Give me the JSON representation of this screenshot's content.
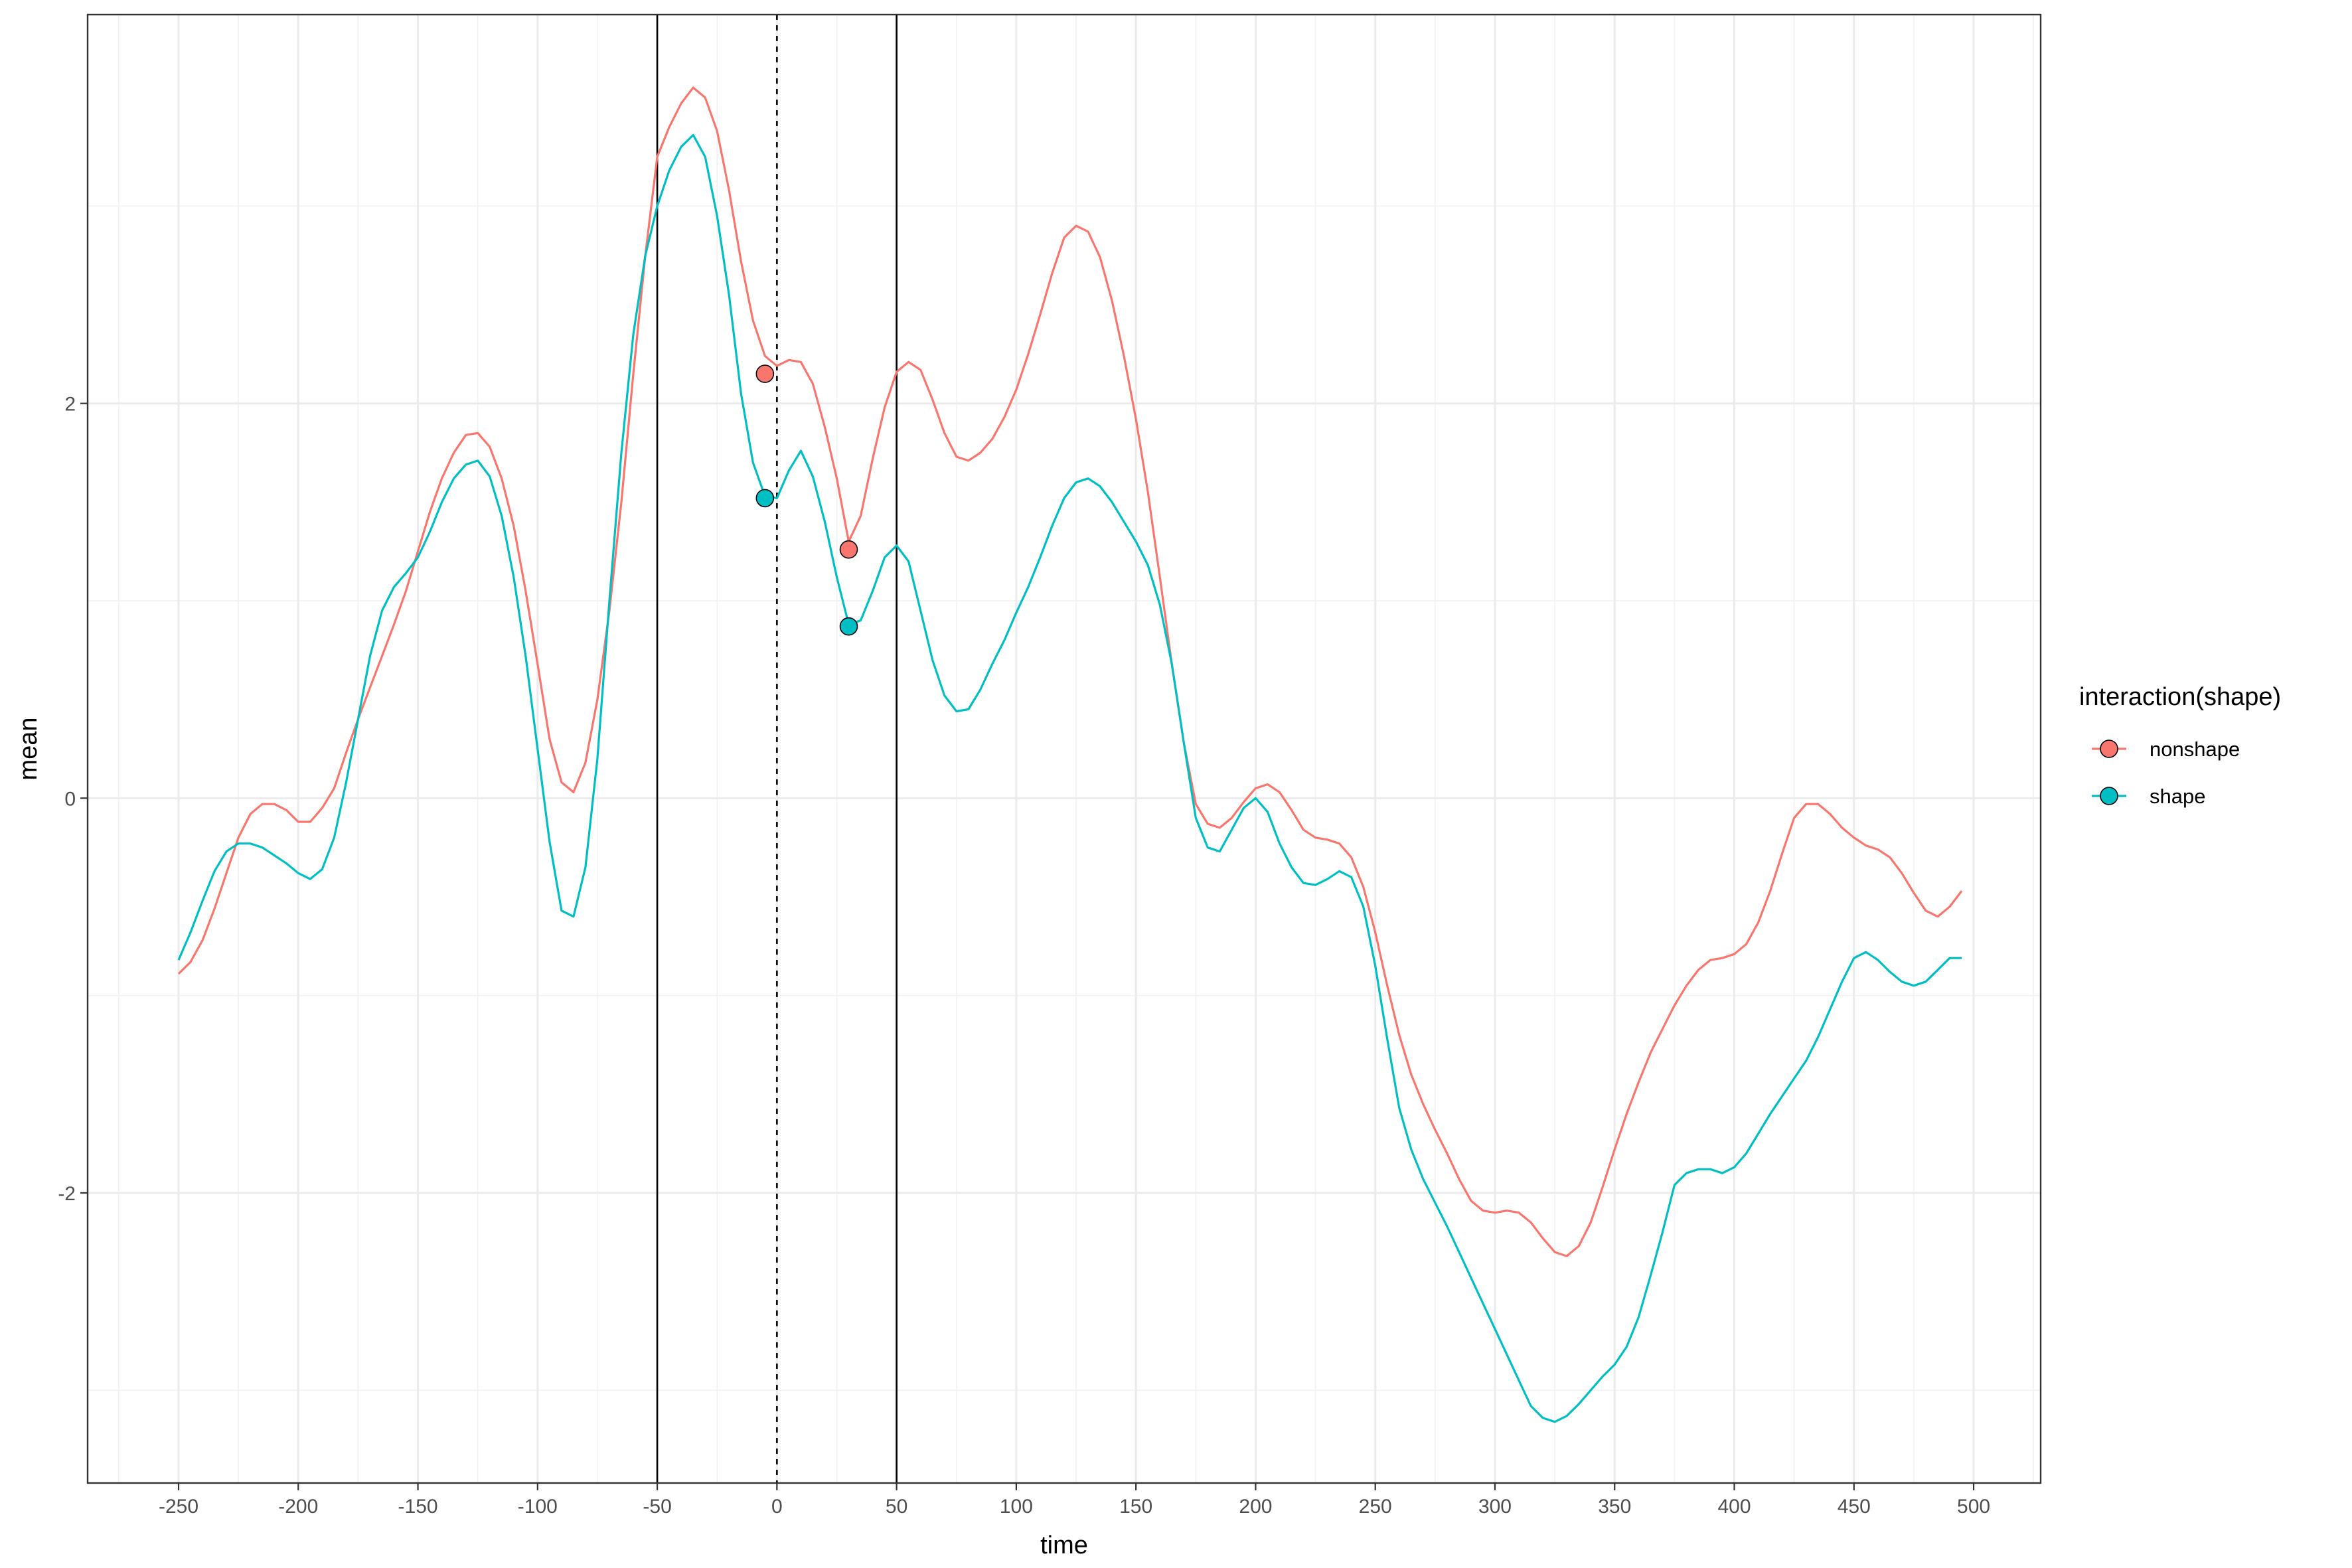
{
  "chart_data": {
    "type": "line",
    "xlabel": "time",
    "ylabel": "mean",
    "xlim": [
      -288,
      528
    ],
    "ylim": [
      -3.47,
      3.97
    ],
    "x_ticks": [
      -250,
      -200,
      -150,
      -100,
      -50,
      0,
      50,
      100,
      150,
      200,
      250,
      300,
      350,
      400,
      450,
      500
    ],
    "x_tick_labels": [
      "-250",
      "-200",
      "-150",
      "-100",
      "-50",
      "0",
      "50",
      "100",
      "150",
      "200",
      "250",
      "300",
      "350",
      "400",
      "450",
      "500"
    ],
    "x_minor_ticks": [
      -275,
      -225,
      -175,
      -125,
      -75,
      -25,
      25,
      75,
      125,
      175,
      225,
      275,
      325,
      375,
      425,
      475,
      525
    ],
    "y_ticks": [
      -2,
      0,
      2
    ],
    "y_tick_labels": [
      "-2",
      "0",
      "2"
    ],
    "y_minor_ticks": [
      -3,
      -1,
      1,
      3
    ],
    "grid": true,
    "legend_position": "right",
    "legend_title": "interaction(shape)",
    "vlines": [
      {
        "x": -50,
        "style": "solid"
      },
      {
        "x": 0,
        "style": "dashed"
      },
      {
        "x": 50,
        "style": "solid"
      }
    ],
    "series": [
      {
        "name": "nonshape",
        "color": "#F8766D",
        "points": [
          [
            -250,
            -0.89
          ],
          [
            -245,
            -0.83
          ],
          [
            -240,
            -0.72
          ],
          [
            -235,
            -0.56
          ],
          [
            -230,
            -0.38
          ],
          [
            -225,
            -0.2
          ],
          [
            -220,
            -0.08
          ],
          [
            -215,
            -0.03
          ],
          [
            -210,
            -0.03
          ],
          [
            -205,
            -0.06
          ],
          [
            -200,
            -0.12
          ],
          [
            -195,
            -0.12
          ],
          [
            -190,
            -0.05
          ],
          [
            -185,
            0.05
          ],
          [
            -180,
            0.23
          ],
          [
            -175,
            0.4
          ],
          [
            -170,
            0.56
          ],
          [
            -165,
            0.72
          ],
          [
            -160,
            0.88
          ],
          [
            -155,
            1.05
          ],
          [
            -150,
            1.25
          ],
          [
            -145,
            1.45
          ],
          [
            -140,
            1.62
          ],
          [
            -135,
            1.75
          ],
          [
            -130,
            1.84
          ],
          [
            -125,
            1.85
          ],
          [
            -120,
            1.78
          ],
          [
            -115,
            1.62
          ],
          [
            -110,
            1.38
          ],
          [
            -105,
            1.05
          ],
          [
            -100,
            0.68
          ],
          [
            -95,
            0.3
          ],
          [
            -90,
            0.08
          ],
          [
            -85,
            0.03
          ],
          [
            -80,
            0.18
          ],
          [
            -75,
            0.5
          ],
          [
            -70,
            0.95
          ],
          [
            -65,
            1.5
          ],
          [
            -60,
            2.15
          ],
          [
            -55,
            2.75
          ],
          [
            -50,
            3.25
          ],
          [
            -45,
            3.4
          ],
          [
            -40,
            3.52
          ],
          [
            -35,
            3.6
          ],
          [
            -30,
            3.55
          ],
          [
            -25,
            3.38
          ],
          [
            -20,
            3.08
          ],
          [
            -15,
            2.72
          ],
          [
            -10,
            2.42
          ],
          [
            -5,
            2.24
          ],
          [
            0,
            2.19
          ],
          [
            5,
            2.22
          ],
          [
            10,
            2.21
          ],
          [
            15,
            2.1
          ],
          [
            20,
            1.88
          ],
          [
            25,
            1.62
          ],
          [
            30,
            1.3
          ],
          [
            35,
            1.43
          ],
          [
            40,
            1.72
          ],
          [
            45,
            1.98
          ],
          [
            50,
            2.16
          ],
          [
            55,
            2.21
          ],
          [
            60,
            2.17
          ],
          [
            65,
            2.02
          ],
          [
            70,
            1.85
          ],
          [
            75,
            1.73
          ],
          [
            80,
            1.71
          ],
          [
            85,
            1.75
          ],
          [
            90,
            1.82
          ],
          [
            95,
            1.93
          ],
          [
            100,
            2.07
          ],
          [
            105,
            2.25
          ],
          [
            110,
            2.45
          ],
          [
            115,
            2.66
          ],
          [
            120,
            2.84
          ],
          [
            125,
            2.9
          ],
          [
            130,
            2.87
          ],
          [
            135,
            2.74
          ],
          [
            140,
            2.52
          ],
          [
            145,
            2.24
          ],
          [
            150,
            1.92
          ],
          [
            155,
            1.55
          ],
          [
            160,
            1.12
          ],
          [
            165,
            0.68
          ],
          [
            170,
            0.28
          ],
          [
            175,
            -0.03
          ],
          [
            180,
            -0.13
          ],
          [
            185,
            -0.15
          ],
          [
            190,
            -0.1
          ],
          [
            195,
            -0.02
          ],
          [
            200,
            0.05
          ],
          [
            205,
            0.07
          ],
          [
            210,
            0.03
          ],
          [
            215,
            -0.06
          ],
          [
            220,
            -0.16
          ],
          [
            225,
            -0.2
          ],
          [
            230,
            -0.21
          ],
          [
            235,
            -0.23
          ],
          [
            240,
            -0.3
          ],
          [
            245,
            -0.45
          ],
          [
            250,
            -0.68
          ],
          [
            255,
            -0.95
          ],
          [
            260,
            -1.2
          ],
          [
            265,
            -1.4
          ],
          [
            270,
            -1.55
          ],
          [
            275,
            -1.68
          ],
          [
            280,
            -1.8
          ],
          [
            285,
            -1.93
          ],
          [
            290,
            -2.04
          ],
          [
            295,
            -2.09
          ],
          [
            300,
            -2.1
          ],
          [
            305,
            -2.09
          ],
          [
            310,
            -2.1
          ],
          [
            315,
            -2.15
          ],
          [
            320,
            -2.23
          ],
          [
            325,
            -2.3
          ],
          [
            330,
            -2.32
          ],
          [
            335,
            -2.27
          ],
          [
            340,
            -2.15
          ],
          [
            345,
            -1.97
          ],
          [
            350,
            -1.78
          ],
          [
            355,
            -1.6
          ],
          [
            360,
            -1.44
          ],
          [
            365,
            -1.29
          ],
          [
            370,
            -1.17
          ],
          [
            375,
            -1.05
          ],
          [
            380,
            -0.95
          ],
          [
            385,
            -0.87
          ],
          [
            390,
            -0.82
          ],
          [
            395,
            -0.81
          ],
          [
            400,
            -0.79
          ],
          [
            405,
            -0.74
          ],
          [
            410,
            -0.63
          ],
          [
            415,
            -0.47
          ],
          [
            420,
            -0.28
          ],
          [
            425,
            -0.1
          ],
          [
            430,
            -0.03
          ],
          [
            435,
            -0.03
          ],
          [
            440,
            -0.08
          ],
          [
            445,
            -0.15
          ],
          [
            450,
            -0.2
          ],
          [
            455,
            -0.24
          ],
          [
            460,
            -0.26
          ],
          [
            465,
            -0.3
          ],
          [
            470,
            -0.38
          ],
          [
            475,
            -0.48
          ],
          [
            480,
            -0.57
          ],
          [
            485,
            -0.6
          ],
          [
            490,
            -0.55
          ],
          [
            495,
            -0.47
          ]
        ],
        "markers": [
          [
            -5,
            2.15
          ],
          [
            30,
            1.26
          ]
        ]
      },
      {
        "name": "shape",
        "color": "#00BFC4",
        "points": [
          [
            -250,
            -0.82
          ],
          [
            -245,
            -0.68
          ],
          [
            -240,
            -0.52
          ],
          [
            -235,
            -0.37
          ],
          [
            -230,
            -0.27
          ],
          [
            -225,
            -0.23
          ],
          [
            -220,
            -0.23
          ],
          [
            -215,
            -0.25
          ],
          [
            -210,
            -0.29
          ],
          [
            -205,
            -0.33
          ],
          [
            -200,
            -0.38
          ],
          [
            -195,
            -0.41
          ],
          [
            -190,
            -0.36
          ],
          [
            -185,
            -0.2
          ],
          [
            -180,
            0.08
          ],
          [
            -175,
            0.4
          ],
          [
            -170,
            0.72
          ],
          [
            -165,
            0.95
          ],
          [
            -160,
            1.07
          ],
          [
            -155,
            1.14
          ],
          [
            -150,
            1.22
          ],
          [
            -145,
            1.35
          ],
          [
            -140,
            1.5
          ],
          [
            -135,
            1.62
          ],
          [
            -130,
            1.69
          ],
          [
            -125,
            1.71
          ],
          [
            -120,
            1.63
          ],
          [
            -115,
            1.43
          ],
          [
            -110,
            1.12
          ],
          [
            -105,
            0.72
          ],
          [
            -100,
            0.25
          ],
          [
            -95,
            -0.22
          ],
          [
            -90,
            -0.57
          ],
          [
            -85,
            -0.6
          ],
          [
            -80,
            -0.35
          ],
          [
            -75,
            0.2
          ],
          [
            -70,
            1.0
          ],
          [
            -65,
            1.75
          ],
          [
            -60,
            2.35
          ],
          [
            -55,
            2.75
          ],
          [
            -50,
            3.0
          ],
          [
            -45,
            3.18
          ],
          [
            -40,
            3.3
          ],
          [
            -35,
            3.36
          ],
          [
            -30,
            3.25
          ],
          [
            -25,
            2.95
          ],
          [
            -20,
            2.55
          ],
          [
            -15,
            2.05
          ],
          [
            -10,
            1.7
          ],
          [
            -5,
            1.53
          ],
          [
            0,
            1.52
          ],
          [
            5,
            1.66
          ],
          [
            10,
            1.76
          ],
          [
            15,
            1.63
          ],
          [
            20,
            1.4
          ],
          [
            25,
            1.12
          ],
          [
            30,
            0.88
          ],
          [
            35,
            0.9
          ],
          [
            40,
            1.05
          ],
          [
            45,
            1.22
          ],
          [
            50,
            1.28
          ],
          [
            55,
            1.2
          ],
          [
            60,
            0.95
          ],
          [
            65,
            0.7
          ],
          [
            70,
            0.52
          ],
          [
            75,
            0.44
          ],
          [
            80,
            0.45
          ],
          [
            85,
            0.55
          ],
          [
            90,
            0.68
          ],
          [
            95,
            0.8
          ],
          [
            100,
            0.94
          ],
          [
            105,
            1.07
          ],
          [
            110,
            1.22
          ],
          [
            115,
            1.38
          ],
          [
            120,
            1.52
          ],
          [
            125,
            1.6
          ],
          [
            130,
            1.62
          ],
          [
            135,
            1.58
          ],
          [
            140,
            1.5
          ],
          [
            145,
            1.4
          ],
          [
            150,
            1.3
          ],
          [
            155,
            1.18
          ],
          [
            160,
            0.98
          ],
          [
            165,
            0.68
          ],
          [
            170,
            0.28
          ],
          [
            175,
            -0.1
          ],
          [
            180,
            -0.25
          ],
          [
            185,
            -0.27
          ],
          [
            190,
            -0.16
          ],
          [
            195,
            -0.05
          ],
          [
            200,
            0.0
          ],
          [
            205,
            -0.07
          ],
          [
            210,
            -0.23
          ],
          [
            215,
            -0.35
          ],
          [
            220,
            -0.43
          ],
          [
            225,
            -0.44
          ],
          [
            230,
            -0.41
          ],
          [
            235,
            -0.37
          ],
          [
            240,
            -0.4
          ],
          [
            245,
            -0.55
          ],
          [
            250,
            -0.85
          ],
          [
            255,
            -1.22
          ],
          [
            260,
            -1.57
          ],
          [
            265,
            -1.78
          ],
          [
            270,
            -1.93
          ],
          [
            275,
            -2.05
          ],
          [
            280,
            -2.17
          ],
          [
            285,
            -2.3
          ],
          [
            290,
            -2.43
          ],
          [
            295,
            -2.56
          ],
          [
            300,
            -2.69
          ],
          [
            305,
            -2.82
          ],
          [
            310,
            -2.95
          ],
          [
            315,
            -3.08
          ],
          [
            320,
            -3.14
          ],
          [
            325,
            -3.16
          ],
          [
            330,
            -3.13
          ],
          [
            335,
            -3.07
          ],
          [
            340,
            -3.0
          ],
          [
            345,
            -2.93
          ],
          [
            350,
            -2.87
          ],
          [
            355,
            -2.78
          ],
          [
            360,
            -2.63
          ],
          [
            365,
            -2.42
          ],
          [
            370,
            -2.2
          ],
          [
            375,
            -1.96
          ],
          [
            380,
            -1.9
          ],
          [
            385,
            -1.88
          ],
          [
            390,
            -1.88
          ],
          [
            395,
            -1.9
          ],
          [
            400,
            -1.87
          ],
          [
            405,
            -1.8
          ],
          [
            410,
            -1.7
          ],
          [
            415,
            -1.6
          ],
          [
            420,
            -1.51
          ],
          [
            425,
            -1.42
          ],
          [
            430,
            -1.33
          ],
          [
            435,
            -1.21
          ],
          [
            440,
            -1.07
          ],
          [
            445,
            -0.93
          ],
          [
            450,
            -0.81
          ],
          [
            455,
            -0.78
          ],
          [
            460,
            -0.82
          ],
          [
            465,
            -0.88
          ],
          [
            470,
            -0.93
          ],
          [
            475,
            -0.95
          ],
          [
            480,
            -0.93
          ],
          [
            485,
            -0.87
          ],
          [
            490,
            -0.81
          ],
          [
            495,
            -0.81
          ]
        ],
        "markers": [
          [
            -5,
            1.52
          ],
          [
            30,
            0.87
          ]
        ]
      }
    ]
  }
}
